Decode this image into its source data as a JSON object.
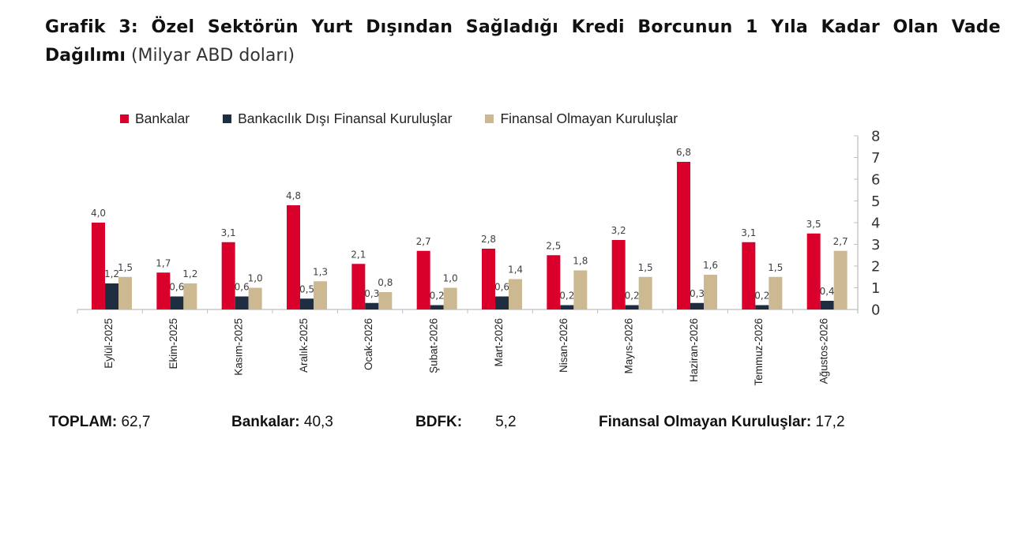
{
  "title": {
    "line1_words": [
      "Grafik",
      "3:",
      "Özel",
      "Sektörün",
      "Yurt",
      "Dışından",
      "Sağladığı",
      "Kredi",
      "Borcunun",
      "1",
      "Yıla",
      "Kadar",
      "Olan",
      "Vade"
    ],
    "line2_bold": "Dağılımı",
    "line2_unit": "(Milyar ABD doları)"
  },
  "legend": [
    {
      "label": "Bankalar",
      "color": "#d9002b"
    },
    {
      "label": "Bankacılık Dışı Finansal Kuruluşlar",
      "color": "#1e2d3f"
    },
    {
      "label": "Finansal Olmayan Kuruluşlar",
      "color": "#cdb991"
    }
  ],
  "footer": {
    "toplam_label": "TOPLAM:",
    "toplam_value": "62,7",
    "bankalar_label": "Bankalar:",
    "bankalar_value": "40,3",
    "bdfk_label": "BDFK:",
    "bdfk_value": "5,2",
    "fok_label": "Finansal Olmayan Kuruluşlar:",
    "fok_value": "17,2"
  },
  "chart_data": {
    "type": "bar",
    "title": "Grafik 3: Özel Sektörün Yurt Dışından Sağladığı Kredi Borcunun 1 Yıla Kadar Olan Vade Dağılımı (Milyar ABD doları)",
    "xlabel": "",
    "ylabel": "Milyar ABD doları",
    "ylim": [
      0,
      8
    ],
    "yticks": [
      0,
      1,
      2,
      3,
      4,
      5,
      6,
      7,
      8
    ],
    "y_axis_position": "right",
    "grid": false,
    "legend_position": "top",
    "categories": [
      "Eylül-2025",
      "Ekim-2025",
      "Kasım-2025",
      "Aralık-2025",
      "Ocak-2026",
      "Şubat-2026",
      "Mart-2026",
      "Nisan-2026",
      "Mayıs-2026",
      "Haziran-2026",
      "Temmuz-2026",
      "Ağustos-2026"
    ],
    "series": [
      {
        "name": "Bankalar",
        "color": "#d9002b",
        "values": [
          4.0,
          1.7,
          3.1,
          4.8,
          2.1,
          2.7,
          2.8,
          2.5,
          3.2,
          6.8,
          3.1,
          3.5
        ],
        "labels": [
          "4,0",
          "1,7",
          "3,1",
          "4,8",
          "2,1",
          "2,7",
          "2,8",
          "2,5",
          "3,2",
          "6,8",
          "3,1",
          "3,5"
        ]
      },
      {
        "name": "Bankacılık Dışı Finansal Kuruluşlar",
        "color": "#1e2d3f",
        "values": [
          1.2,
          0.6,
          0.6,
          0.5,
          0.3,
          0.2,
          0.6,
          0.2,
          0.2,
          0.3,
          0.2,
          0.4
        ],
        "labels": [
          "1,2",
          "0,6",
          "0,6",
          "0,5",
          "0,3",
          "0,2",
          "0,6",
          "0,2",
          "0,2",
          "0,3",
          "0,2",
          "0,4"
        ]
      },
      {
        "name": "Finansal Olmayan Kuruluşlar",
        "color": "#cdb991",
        "values": [
          1.5,
          1.2,
          1.0,
          1.3,
          0.8,
          1.0,
          1.4,
          1.8,
          1.5,
          1.6,
          1.5,
          2.7
        ],
        "labels": [
          "1,5",
          "1,2",
          "1,0",
          "1,3",
          "0,8",
          "1,0",
          "1,4",
          "1,8",
          "1,5",
          "1,6",
          "1,5",
          "2,7"
        ]
      }
    ],
    "totals": {
      "TOPLAM": 62.7,
      "Bankalar": 40.3,
      "BDFK": 5.2,
      "Finansal Olmayan Kuruluşlar": 17.2
    }
  }
}
